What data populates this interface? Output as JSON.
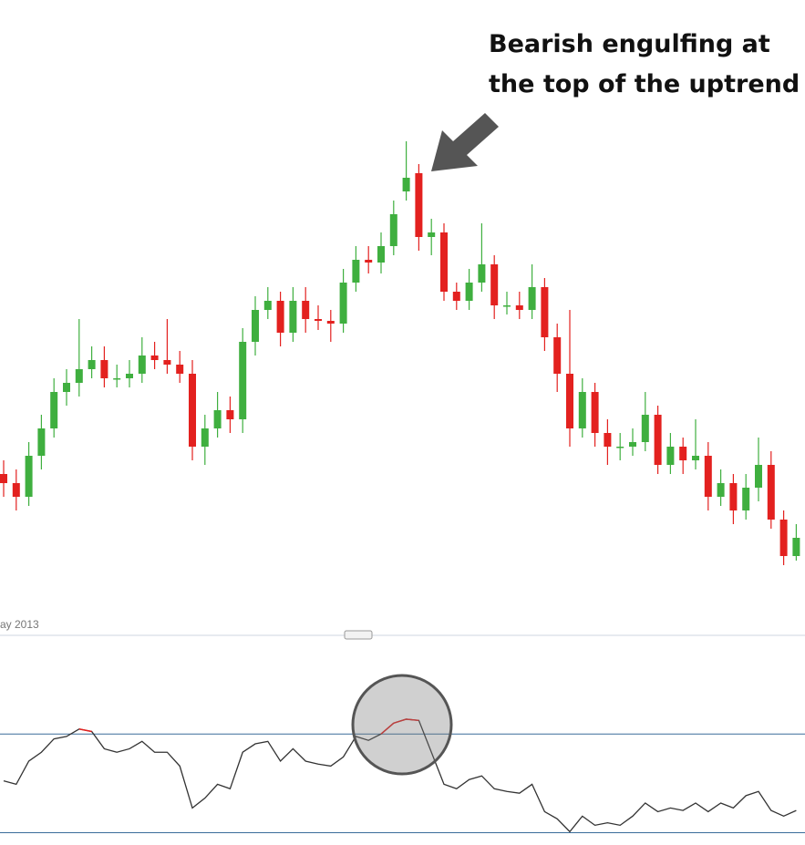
{
  "annotation": [
    "Bearish engulfing at",
    "the top of the uptrend"
  ],
  "date_label": "ay 2013",
  "chart_data": [
    {
      "type": "candlestick",
      "up_color": "#3faf3f",
      "down_color": "#e3211f",
      "ylim": [
        40,
        110
      ],
      "open": [
        58.0,
        57.0,
        55.5,
        60.0,
        63.0,
        67.0,
        68.0,
        69.5,
        70.5,
        68.5,
        68.5,
        69.0,
        71.0,
        70.5,
        70.0,
        69.0,
        61.0,
        63.0,
        65.0,
        64.0,
        72.5,
        76.0,
        77.0,
        73.5,
        77.0,
        75.0,
        74.8,
        74.5,
        79.0,
        81.5,
        81.2,
        83.0,
        89.0,
        91.0,
        84.0,
        84.5,
        78.0,
        77.0,
        79.0,
        81.0,
        76.5,
        76.5,
        76.0,
        78.5,
        73.0,
        69.0,
        63.0,
        67.0,
        62.5,
        61.0,
        61.0,
        61.5,
        64.5,
        59.0,
        61.0,
        59.5,
        60.0,
        55.5,
        57.0,
        54.0,
        56.5,
        59.0,
        53.0,
        49.0
      ],
      "high": [
        59.5,
        58.5,
        61.5,
        64.5,
        68.5,
        69.5,
        75.0,
        72.0,
        72.0,
        70.0,
        70.5,
        73.0,
        72.5,
        75.0,
        71.5,
        70.5,
        64.5,
        67.0,
        66.5,
        74.0,
        77.5,
        78.5,
        78.0,
        78.5,
        78.5,
        76.5,
        76.0,
        80.5,
        83.0,
        83.0,
        84.5,
        88.0,
        94.5,
        92.0,
        86.0,
        85.5,
        79.0,
        80.5,
        85.5,
        82.0,
        78.0,
        78.0,
        81.0,
        79.5,
        74.5,
        76.0,
        68.5,
        68.0,
        64.0,
        62.5,
        63.0,
        67.0,
        65.5,
        62.5,
        62.0,
        64.0,
        61.5,
        58.5,
        58.0,
        58.0,
        62.0,
        60.5,
        54.0,
        52.5
      ],
      "low": [
        55.5,
        54.0,
        54.5,
        58.5,
        62.0,
        65.5,
        66.5,
        68.5,
        67.5,
        67.5,
        67.5,
        68.0,
        69.5,
        69.0,
        68.0,
        59.5,
        59.0,
        62.0,
        62.5,
        62.5,
        71.0,
        75.0,
        72.0,
        72.5,
        73.5,
        73.8,
        72.5,
        73.5,
        78.0,
        80.0,
        80.0,
        82.0,
        88.0,
        82.5,
        82.0,
        77.0,
        76.0,
        76.0,
        78.0,
        75.0,
        75.5,
        75.0,
        75.0,
        71.5,
        67.0,
        61.0,
        62.0,
        61.0,
        59.0,
        59.5,
        60.0,
        60.5,
        58.0,
        58.0,
        58.0,
        58.5,
        54.0,
        54.5,
        52.5,
        53.0,
        55.0,
        52.0,
        48.0,
        48.5
      ],
      "close": [
        57.0,
        55.5,
        60.0,
        63.0,
        67.0,
        68.0,
        69.5,
        70.5,
        68.5,
        68.5,
        69.0,
        71.0,
        70.5,
        70.0,
        69.0,
        61.0,
        63.0,
        65.0,
        64.0,
        72.5,
        76.0,
        77.0,
        73.5,
        77.0,
        75.0,
        74.8,
        74.5,
        79.0,
        81.5,
        81.2,
        83.0,
        86.5,
        90.5,
        84.0,
        84.5,
        78.0,
        77.0,
        79.0,
        81.0,
        76.5,
        76.5,
        76.0,
        78.5,
        73.0,
        69.0,
        63.0,
        67.0,
        62.5,
        61.0,
        61.0,
        61.5,
        64.5,
        59.0,
        61.0,
        59.5,
        60.0,
        55.5,
        57.0,
        54.0,
        56.5,
        59.0,
        53.0,
        49.0,
        51.0
      ]
    },
    {
      "type": "line",
      "color": "#333333",
      "overbought_color": "#e3211f",
      "level_color": "#3a6d9a",
      "ylim": [
        25,
        100
      ],
      "levels": [
        70,
        30
      ],
      "values": [
        51,
        49.6,
        59,
        62.6,
        68,
        69,
        72,
        71,
        64,
        62.6,
        64,
        67,
        62.6,
        62.6,
        57,
        40,
        44,
        49.6,
        47.8,
        62.6,
        66,
        67,
        59,
        64,
        59,
        57.8,
        57,
        60.7,
        69,
        67.4,
        70,
        74.4,
        76,
        75.5,
        62.6,
        49.6,
        47.8,
        51.5,
        53,
        47.8,
        46.7,
        46,
        49.6,
        38.5,
        35.6,
        30.4,
        36.7,
        33,
        34,
        33,
        36.7,
        42,
        38.5,
        40,
        39,
        42,
        38.5,
        42,
        40,
        45,
        46.7,
        39,
        36.7,
        39
      ]
    }
  ]
}
